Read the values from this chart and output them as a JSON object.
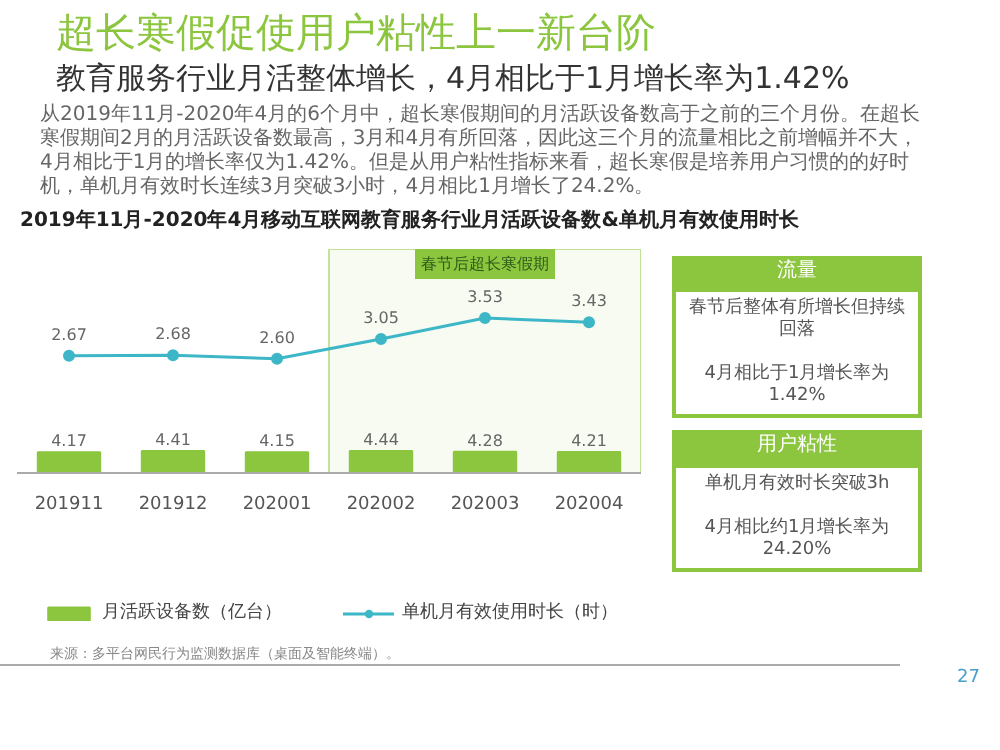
{
  "chart_data": {
    "type": "bar",
    "title": "超长寒假促使用户粘性上一新台阶",
    "subtitle": "教育服务行业月活整体增长，4月相比于1月增长率为1.42%",
    "annotations": [
      "从2019年11月-2020年4月的6个月中，超长寒假期间的月活跃设备数高于之前的三个月份。在超长寒假期间2月的月活跃设备数最高，3月和4月有所回落，因此这三个月的流量相比之前增幅并不大，4月相比于1月的增长率仅为1.42%。但是从用户粘性指标来看，超长寒假是培养用户习惯的的好时机，单机月有效时长连续3月突破3小时，4月相比1月增长了24.2%。",
      "2019年11月-2020年4月移动互联网教育服务行业月活跃设备数&单机月有效使用时长",
      "流量",
      "春节后整体有所增长但持续回落",
      "4月相比于1月增长率为1.42%",
      "用户粘性",
      "单机月有效时长突破3h",
      "4月相比约1月增长率为24.20%",
      "来源：多平台网民行为监测数据库（桌面及智能终端）。",
      "27"
    ],
    "categories": [
      "201911",
      "201912",
      "202001",
      "202002",
      "202003",
      "202004"
    ],
    "series": [
      {
        "name": "月活跃设备数（亿台）",
        "color": "#8cc63f",
        "values": [
          4.17,
          4.41,
          4.15,
          4.44,
          4.28,
          4.21
        ],
        "value_labels": [
          "4.17",
          "4.41",
          "4.15",
          "4.44",
          "4.28",
          "4.21"
        ]
      },
      {
        "name": "单机月有效使用时长（时）",
        "type": "line",
        "axis": "y2",
        "color": "#3db7c7",
        "values": [
          2.67,
          2.68,
          2.6,
          3.05,
          3.53,
          3.43
        ],
        "value_labels": [
          "2.67",
          "2.68",
          "2.60",
          "3.05",
          "3.53",
          "3.43"
        ]
      }
    ],
    "bands": [
      {
        "axis": "x",
        "from": "202002",
        "to": "202004",
        "label": "春节后超长寒假期",
        "color": "#8cc63f"
      }
    ],
    "ylim": [
      0,
      45
    ],
    "y2lim": [
      0,
      5.1
    ],
    "tick_labels": "x",
    "legend": "bottom",
    "marker": "circle",
    "line_style": "solid"
  }
}
